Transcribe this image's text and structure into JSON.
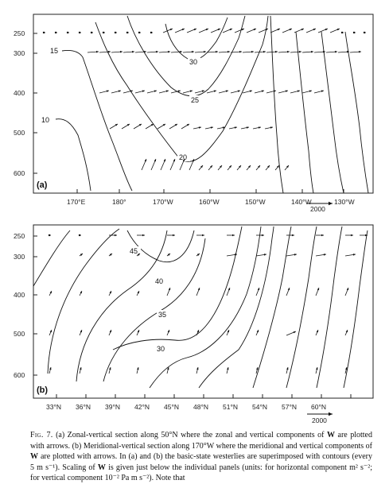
{
  "panel_a": {
    "label": "(a)",
    "pressure_ticks": [
      "250",
      "300",
      "400",
      "500",
      "600"
    ],
    "lon_ticks": [
      "170°E",
      "180°",
      "170°W",
      "160°W",
      "150°W",
      "140°W",
      "130°W"
    ],
    "contour_labels": [
      "15",
      "10",
      "30",
      "25",
      "20"
    ],
    "scale_label": "2000"
  },
  "panel_b": {
    "label": "(b)",
    "pressure_ticks": [
      "250",
      "300",
      "400",
      "500",
      "600"
    ],
    "lat_ticks": [
      "33°N",
      "36°N",
      "39°N",
      "42°N",
      "45°N",
      "48°N",
      "51°N",
      "54°N",
      "57°N",
      "60°N"
    ],
    "contour_labels": [
      "45",
      "40",
      "35",
      "30"
    ],
    "scale_label": "2000"
  },
  "caption": {
    "fig_no": "Fig. 7.",
    "text_1": " (a) Zonal-vertical section along 50°N where the zonal and vertical components of ",
    "bold_W_1": "W",
    "text_2": " are plotted with arrows. (b) Meridional-vertical section along 170°W where the meridional and vertical components of ",
    "bold_W_2": "W",
    "text_3": " are plotted with arrows. In (a) and (b) the basic-state westerlies are superimposed with contours (every 5 m s⁻¹). Scaling of ",
    "bold_W_3": "W",
    "text_4": " is given just below the individual panels (units: for horizontal component m² s⁻²; for vertical component 10⁻² Pa m s⁻²). Note that"
  }
}
